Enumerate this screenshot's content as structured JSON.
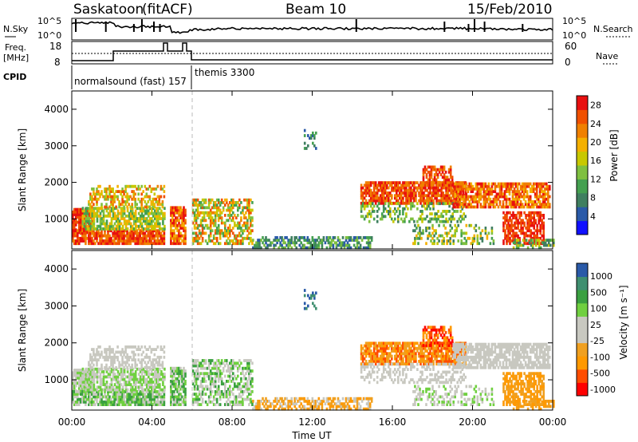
{
  "header": {
    "station": "Saskatoon",
    "mode": "(fitACF)",
    "beam": "Beam 10",
    "date": "15/Feb/2010"
  },
  "top_panels": {
    "nsky_label": "N.Sky",
    "nsearch_label": "N.Search",
    "noise_ticks": [
      "10^5",
      "10^0"
    ],
    "freq_label_1": "Freq.",
    "freq_label_2": "[MHz]",
    "freq_ticks": [
      "18",
      "8"
    ],
    "nave_ticks": [
      "60",
      "0"
    ],
    "nave_label": "Nave",
    "cpid_label": "CPID",
    "cpid_1": "normalsound (fast) 157",
    "cpid_2": "themis 3300"
  },
  "colors": {
    "power": [
      "#1010ff",
      "#2a5aa8",
      "#3f7f60",
      "#44a050",
      "#7fc040",
      "#c8c800",
      "#f4b000",
      "#f08000",
      "#f05000",
      "#e81010"
    ],
    "velocity": [
      "#ff0000",
      "#ff4d00",
      "#ff9900",
      "#f0a020",
      "#c8c8c0",
      "#c8c8c0",
      "#70d040",
      "#3aa040",
      "#3f8f70",
      "#2a5aa8",
      "#1a2aa8"
    ],
    "ground_scatter": "#c8c8c0"
  },
  "chart_data": [
    {
      "type": "heatmap",
      "name": "power",
      "ylabel": "Slant Range [km]",
      "xlabel": "",
      "xlim": [
        "00:00",
        "24:00"
      ],
      "ylim": [
        180,
        4500
      ],
      "yticks": [
        "1000",
        "2000",
        "3000",
        "4000"
      ],
      "colorbar_label": "Power [dB]",
      "colorbar_ticks": [
        "4",
        "8",
        "12",
        "16",
        "20",
        "24",
        "28"
      ],
      "colorbar_range": [
        0,
        30
      ]
    },
    {
      "type": "heatmap",
      "name": "velocity",
      "ylabel": "Slant Range [km]",
      "xlabel": "Time UT",
      "xlim": [
        "00:00",
        "24:00"
      ],
      "ylim": [
        180,
        4500
      ],
      "yticks": [
        "1000",
        "2000",
        "3000",
        "4000"
      ],
      "xticks": [
        "00:00",
        "04:00",
        "08:00",
        "12:00",
        "16:00",
        "20:00",
        "00:00"
      ],
      "colorbar_label": "Velocity [m s⁻¹]",
      "colorbar_ticks": [
        "1000",
        "500",
        "100",
        "25",
        "-25",
        "-100",
        "-500",
        "-1000"
      ],
      "colorbar_range": [
        -1000,
        1000
      ]
    }
  ]
}
